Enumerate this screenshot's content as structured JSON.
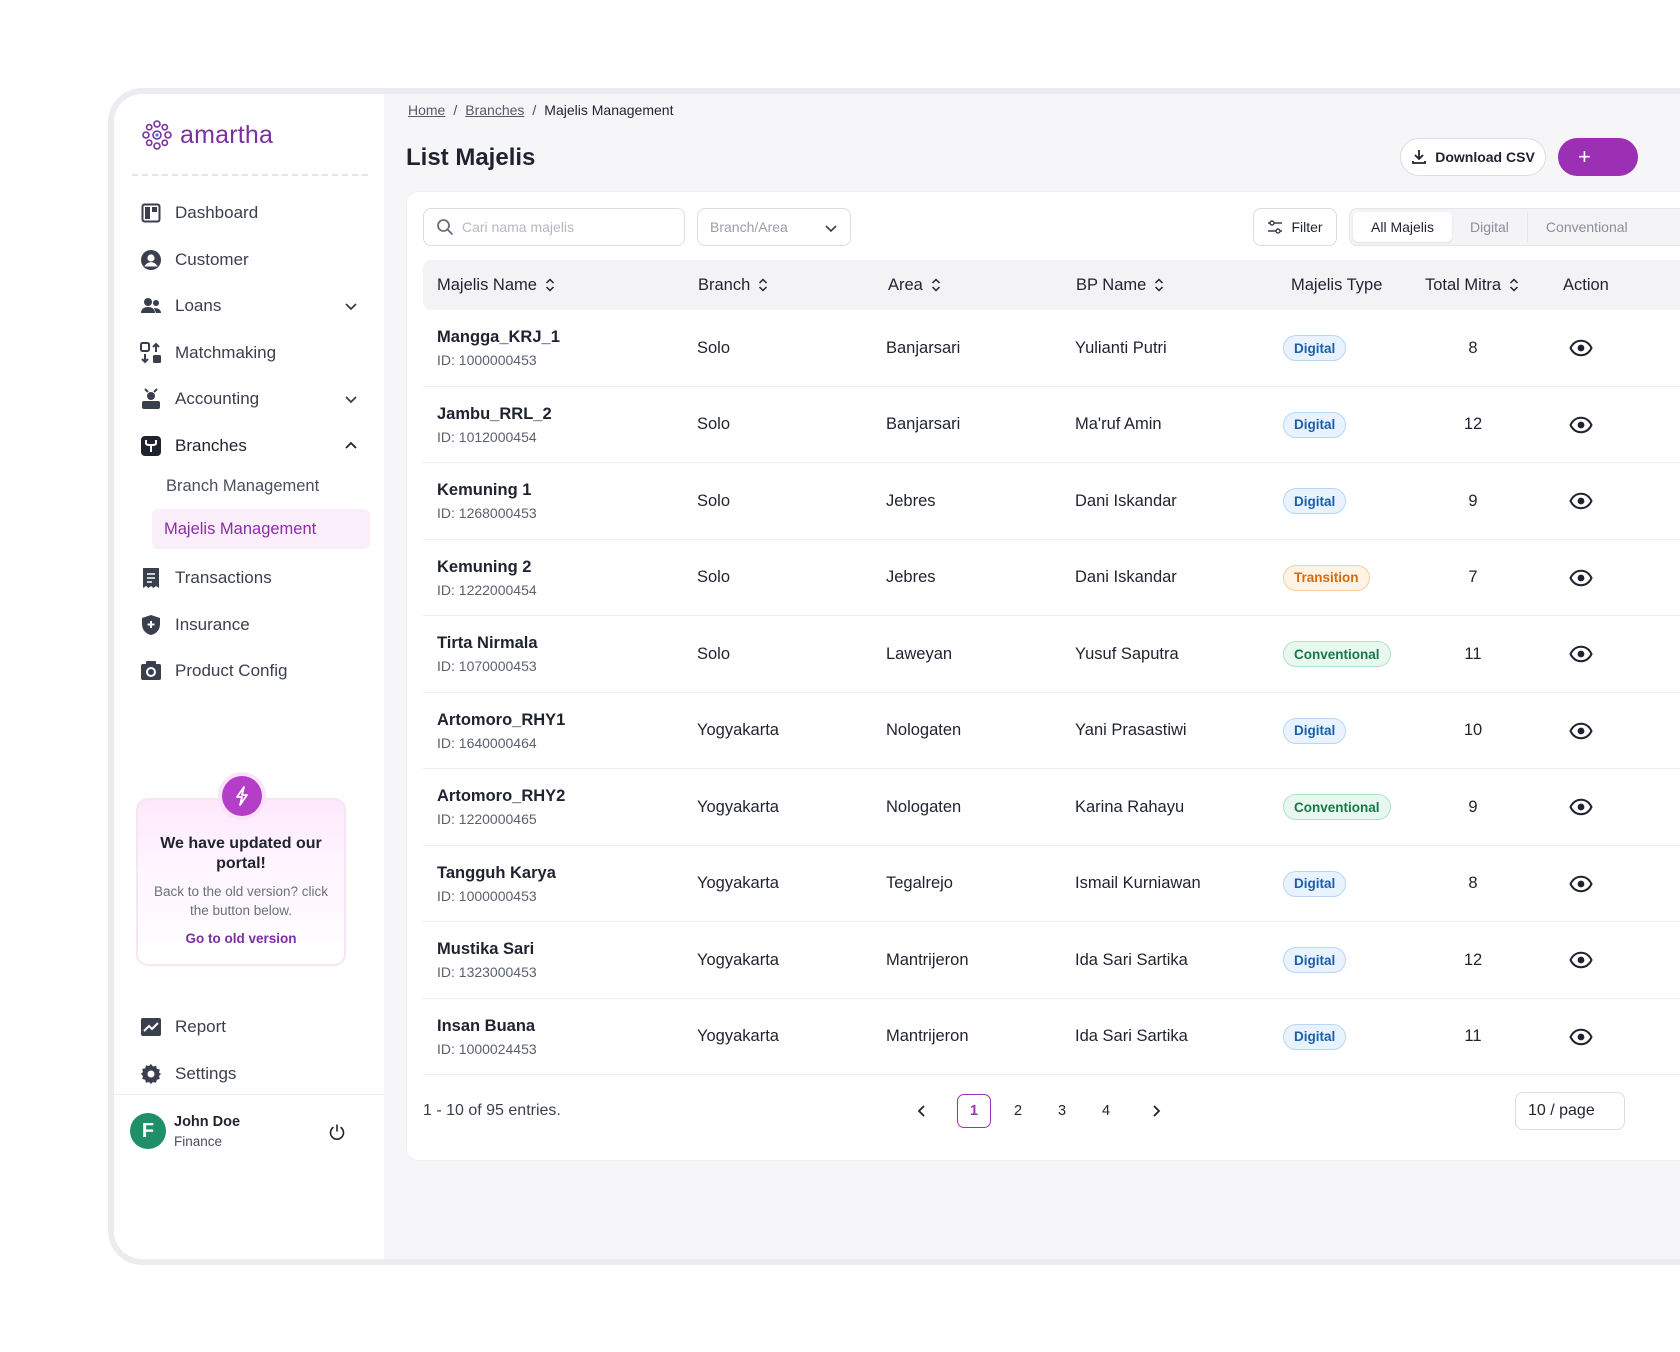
{
  "brand": {
    "name": "amartha",
    "color": "#7b2fa0"
  },
  "breadcrumb": {
    "home": "Home",
    "branches": "Branches",
    "current": "Majelis Management"
  },
  "page": {
    "title": "List Majelis",
    "download_label": "Download CSV",
    "add_label": "+"
  },
  "sidebar": {
    "items": [
      {
        "label": "Dashboard",
        "icon": "dashboard-icon"
      },
      {
        "label": "Customer",
        "icon": "customer-icon"
      },
      {
        "label": "Loans",
        "icon": "loans-icon"
      },
      {
        "label": "Matchmaking",
        "icon": "matchmaking-icon"
      },
      {
        "label": "Accounting",
        "icon": "accounting-icon"
      },
      {
        "label": "Branches",
        "icon": "branches-icon"
      },
      {
        "label": "Transactions",
        "icon": "transactions-icon"
      },
      {
        "label": "Insurance",
        "icon": "insurance-icon"
      },
      {
        "label": "Product Config",
        "icon": "product-config-icon"
      }
    ],
    "sub_items": [
      "Branch Management",
      "Majelis Management"
    ],
    "bottom": [
      {
        "label": "Report",
        "icon": "report-icon"
      },
      {
        "label": "Settings",
        "icon": "settings-icon"
      }
    ],
    "promo": {
      "title": "We have updated our portal!",
      "subtitle": "Back to the old version? click the button below.",
      "link": "Go to old version"
    },
    "user": {
      "initial": "F",
      "name": "John Doe",
      "role": "Finance"
    }
  },
  "toolbar": {
    "search_placeholder": "Cari nama majelis",
    "branch_placeholder": "Branch/Area",
    "filter_label": "Filter",
    "tabs": [
      "All Majelis",
      "Digital",
      "Conventional"
    ]
  },
  "table": {
    "headers": [
      "Majelis Name",
      "Branch",
      "Area",
      "BP Name",
      "Majelis Type",
      "Total Mitra",
      "Action"
    ],
    "rows": [
      {
        "name": "Mangga_KRJ_1",
        "id": "ID: 1000000453",
        "branch": "Solo",
        "area": "Banjarsari",
        "bp": "Yulianti Putri",
        "type": "Digital",
        "total": "8"
      },
      {
        "name": "Jambu_RRL_2",
        "id": "ID: 1012000454",
        "branch": "Solo",
        "area": "Banjarsari",
        "bp": "Ma'ruf Amin",
        "type": "Digital",
        "total": "12"
      },
      {
        "name": "Kemuning 1",
        "id": "ID: 1268000453",
        "branch": "Solo",
        "area": "Jebres",
        "bp": "Dani Iskandar",
        "type": "Digital",
        "total": "9"
      },
      {
        "name": "Kemuning 2",
        "id": "ID: 1222000454",
        "branch": "Solo",
        "area": "Jebres",
        "bp": "Dani Iskandar",
        "type": "Transition",
        "total": "7"
      },
      {
        "name": "Tirta Nirmala",
        "id": "ID: 1070000453",
        "branch": "Solo",
        "area": "Laweyan",
        "bp": "Yusuf Saputra",
        "type": "Conventional",
        "total": "11"
      },
      {
        "name": "Artomoro_RHY1",
        "id": "ID: 1640000464",
        "branch": "Yogyakarta",
        "area": "Nologaten",
        "bp": "Yani Prasastiwi",
        "type": "Digital",
        "total": "10"
      },
      {
        "name": "Artomoro_RHY2",
        "id": "ID: 1220000465",
        "branch": "Yogyakarta",
        "area": "Nologaten",
        "bp": "Karina Rahayu",
        "type": "Conventional",
        "total": "9"
      },
      {
        "name": "Tangguh Karya",
        "id": "ID: 1000000453",
        "branch": "Yogyakarta",
        "area": "Tegalrejo",
        "bp": "Ismail Kurniawan",
        "type": "Digital",
        "total": "8"
      },
      {
        "name": "Mustika Sari",
        "id": "ID: 1323000453",
        "branch": "Yogyakarta",
        "area": "Mantrijeron",
        "bp": "Ida Sari Sartika",
        "type": "Digital",
        "total": "12"
      },
      {
        "name": "Insan Buana",
        "id": "ID: 1000024453",
        "branch": "Yogyakarta",
        "area": "Mantrijeron",
        "bp": "Ida Sari Sartika",
        "type": "Digital",
        "total": "11"
      }
    ]
  },
  "pagination": {
    "summary": "1 - 10 of 95 entries.",
    "pages": [
      "1",
      "2",
      "3",
      "4"
    ],
    "current": "1",
    "per_page": "10 / page"
  },
  "colors": {
    "accent": "#9b30b4",
    "digital": "#1b5fa8",
    "transition": "#d36b0e",
    "conventional": "#17774a"
  }
}
